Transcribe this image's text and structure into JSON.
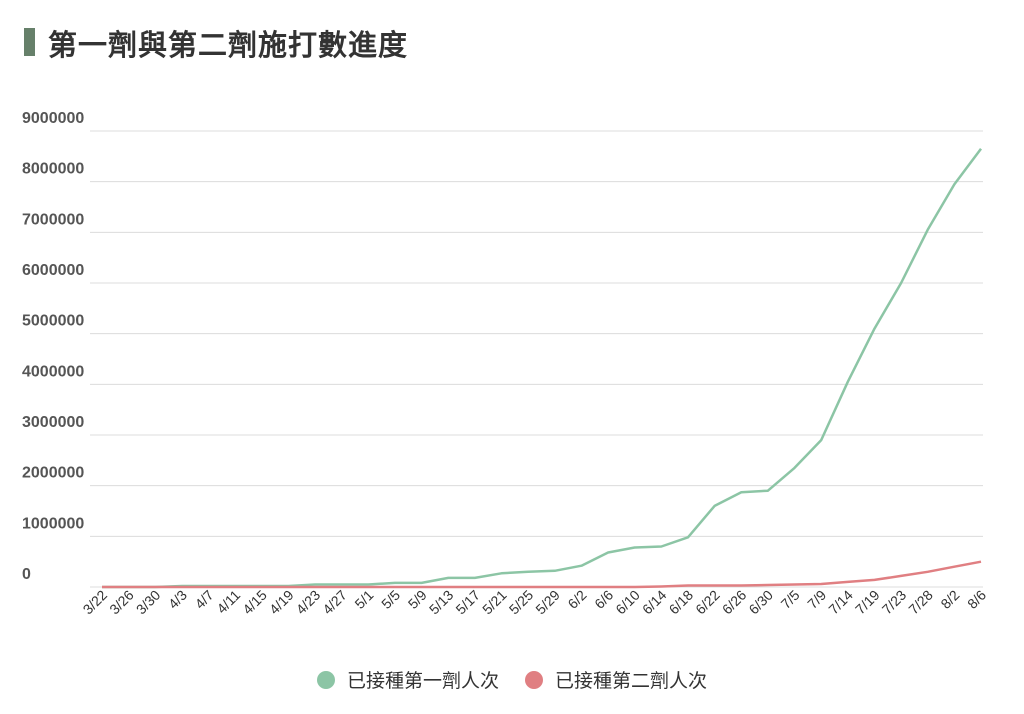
{
  "title": "第一劑與第二劑施打數進度",
  "colors": {
    "title_accent": "#66806a",
    "first_dose": "#8cc5a5",
    "second_dose": "#e07f82",
    "grid": "#dcdcdc"
  },
  "chart_data": {
    "type": "line",
    "title": "第一劑與第二劑施打數進度",
    "xlabel": "",
    "ylabel": "",
    "ylim": [
      0,
      9000000
    ],
    "yticks": [
      "0",
      "1000000",
      "2000000",
      "3000000",
      "4000000",
      "5000000",
      "6000000",
      "7000000",
      "8000000",
      "9000000"
    ],
    "grid": true,
    "legend": "bottom-center",
    "x_tick_labels": [
      "3/22",
      "3/26",
      "3/30",
      "4/3",
      "4/7",
      "4/11",
      "4/15",
      "4/19",
      "4/23",
      "4/27",
      "5/1",
      "5/5",
      "5/9",
      "5/13",
      "5/17",
      "5/21",
      "5/25",
      "5/29",
      "6/2",
      "6/6",
      "6/10",
      "6/14",
      "6/18",
      "6/22",
      "6/26",
      "6/30",
      "7/5",
      "7/9",
      "7/14",
      "7/19",
      "7/23",
      "7/28",
      "8/2",
      "8/6"
    ],
    "series": [
      {
        "name": "已接種第一劑人次",
        "color": "#8cc5a5",
        "values": [
          0,
          0,
          0,
          20000,
          20000,
          20000,
          20000,
          20000,
          50000,
          50000,
          50000,
          80000,
          80000,
          180000,
          180000,
          270000,
          300000,
          320000,
          420000,
          680000,
          780000,
          800000,
          980000,
          1600000,
          1870000,
          1900000,
          2350000,
          2900000,
          4050000,
          5100000,
          6000000,
          7050000,
          7950000,
          8650000
        ]
      },
      {
        "name": "已接種第二劑人次",
        "color": "#e07f82",
        "values": [
          0,
          0,
          0,
          0,
          0,
          0,
          0,
          0,
          0,
          0,
          0,
          0,
          0,
          0,
          0,
          0,
          0,
          0,
          0,
          0,
          0,
          10000,
          30000,
          30000,
          30000,
          40000,
          50000,
          60000,
          100000,
          140000,
          220000,
          300000,
          400000,
          500000
        ]
      }
    ]
  }
}
